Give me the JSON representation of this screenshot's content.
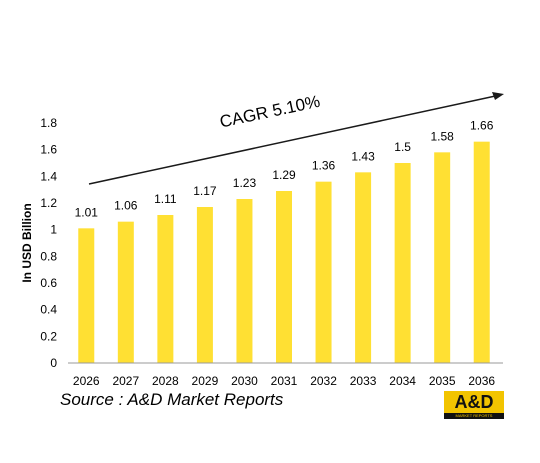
{
  "chart_data": {
    "type": "bar",
    "categories": [
      "2026",
      "2027",
      "2028",
      "2029",
      "2030",
      "2031",
      "2032",
      "2033",
      "2034",
      "2035",
      "2036"
    ],
    "values": [
      1.01,
      1.06,
      1.11,
      1.17,
      1.23,
      1.29,
      1.36,
      1.43,
      1.5,
      1.58,
      1.66
    ],
    "data_labels": [
      "1.01",
      "1.06",
      "1.11",
      "1.17",
      "1.23",
      "1.29",
      "1.36",
      "1.43",
      "1.5",
      "1.58",
      "1.66"
    ],
    "ylabel": "In USD Billion",
    "ylim": [
      0,
      1.8
    ],
    "yticks": [
      "0",
      "0.2",
      "0.4",
      "0.6",
      "0.8",
      "1",
      "1.2",
      "1.4",
      "1.6",
      "1.8"
    ],
    "grid": false,
    "bar_color": "#FFE033",
    "annotation": "CAGR 5.10%"
  },
  "source": "Source : A&D Market Reports",
  "logo": {
    "text": "A&D",
    "subtext": "MARKET REPORTS",
    "color": "#F2C400"
  }
}
